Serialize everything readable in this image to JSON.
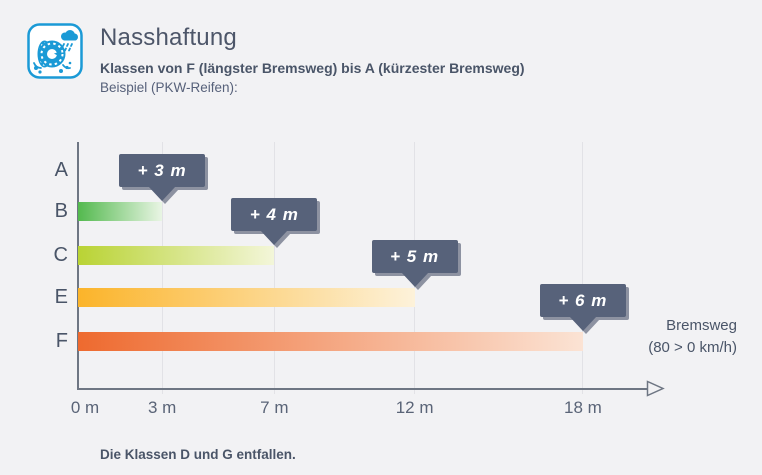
{
  "header": {
    "title": "Nasshaftung",
    "subtitle": "Klassen von F (längster Bremsweg) bis A (kürzester Bremsweg)",
    "example": "Beispiel (PKW-Reifen):",
    "icon": "wet-tire-rain-icon",
    "accent_color": "#1b9ad6"
  },
  "chart_data": {
    "type": "bar",
    "orientation": "horizontal",
    "categories": [
      "A",
      "B",
      "C",
      "E",
      "F"
    ],
    "values": [
      0,
      3,
      7,
      12,
      18
    ],
    "unit": "m",
    "xlim": [
      0,
      20
    ],
    "grid": true,
    "x_ticks": [
      {
        "value": 0,
        "label": "0 m"
      },
      {
        "value": 3,
        "label": "3 m"
      },
      {
        "value": 7,
        "label": "7 m"
      },
      {
        "value": 12,
        "label": "12 m"
      },
      {
        "value": 18,
        "label": "18 m"
      }
    ],
    "annotations": [
      {
        "category": "B",
        "value": 3,
        "label": "+ 3 m"
      },
      {
        "category": "C",
        "value": 7,
        "label": "+ 4 m"
      },
      {
        "category": "E",
        "value": 12,
        "label": "+ 5 m"
      },
      {
        "category": "F",
        "value": 18,
        "label": "+ 6 m"
      }
    ],
    "xlabel": [
      "Bremsweg",
      "(80 > 0 km/h)"
    ],
    "bar_colors": {
      "B": {
        "start": "#53b94e",
        "end": "#e9f5e4"
      },
      "C": {
        "start": "#b9d334",
        "end": "#f3f6d9"
      },
      "E": {
        "start": "#fbb42a",
        "end": "#fdf2da"
      },
      "F": {
        "start": "#ee6a2f",
        "end": "#fbe3d4"
      }
    },
    "tooltip_color": "#57627a",
    "axis_color": "#6e7683"
  },
  "footer": {
    "note": "Die Klassen D und G entfallen."
  }
}
